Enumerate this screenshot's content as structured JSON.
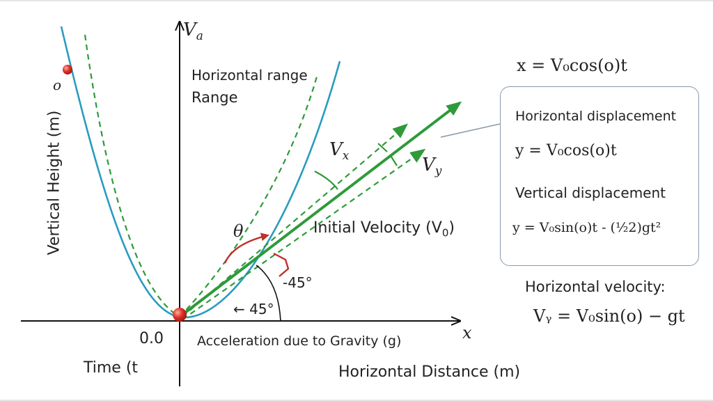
{
  "axes": {
    "y_axis_label": "Vertical Height (m)",
    "x_axis_label": "Horizontal Distance (m)",
    "y_axis_symbol": "V",
    "y_axis_symbol_sub": "a",
    "x_axis_symbol": "x",
    "origin_label": "0.0",
    "time_label": "Time (t"
  },
  "labels": {
    "horizontal_range": "Horizontal range",
    "range": "Range",
    "point_label": "o",
    "vx": "V",
    "vx_sub": "x",
    "vy": "V",
    "vy_sub": "y",
    "theta": "θ",
    "initial_velocity": "Initial Velocity (V",
    "initial_velocity_sub": "0",
    "initial_velocity_end": ")",
    "angle_1": "-45°",
    "angle_2": "← 45°",
    "gravity": "Acceleration due to Gravity (g)"
  },
  "equations": {
    "top": "x = V₀cos(o)t",
    "box_heading_1": "Horizontal displacement",
    "box_eq_1": "y = V₀cos(o)t",
    "box_heading_2": "Vertical displacement",
    "box_eq_2": "y = V₀sin(o)t - (½2)gt²",
    "bottom_heading": "Horizontal velocity:",
    "bottom_eq": "Vᵧ = V₀sin(o) − gt"
  },
  "colors": {
    "trajectory": "#2a9bbf",
    "velocity": "#2e9a3a",
    "angle_marker": "#c0302c",
    "dot": "#e0302a"
  }
}
